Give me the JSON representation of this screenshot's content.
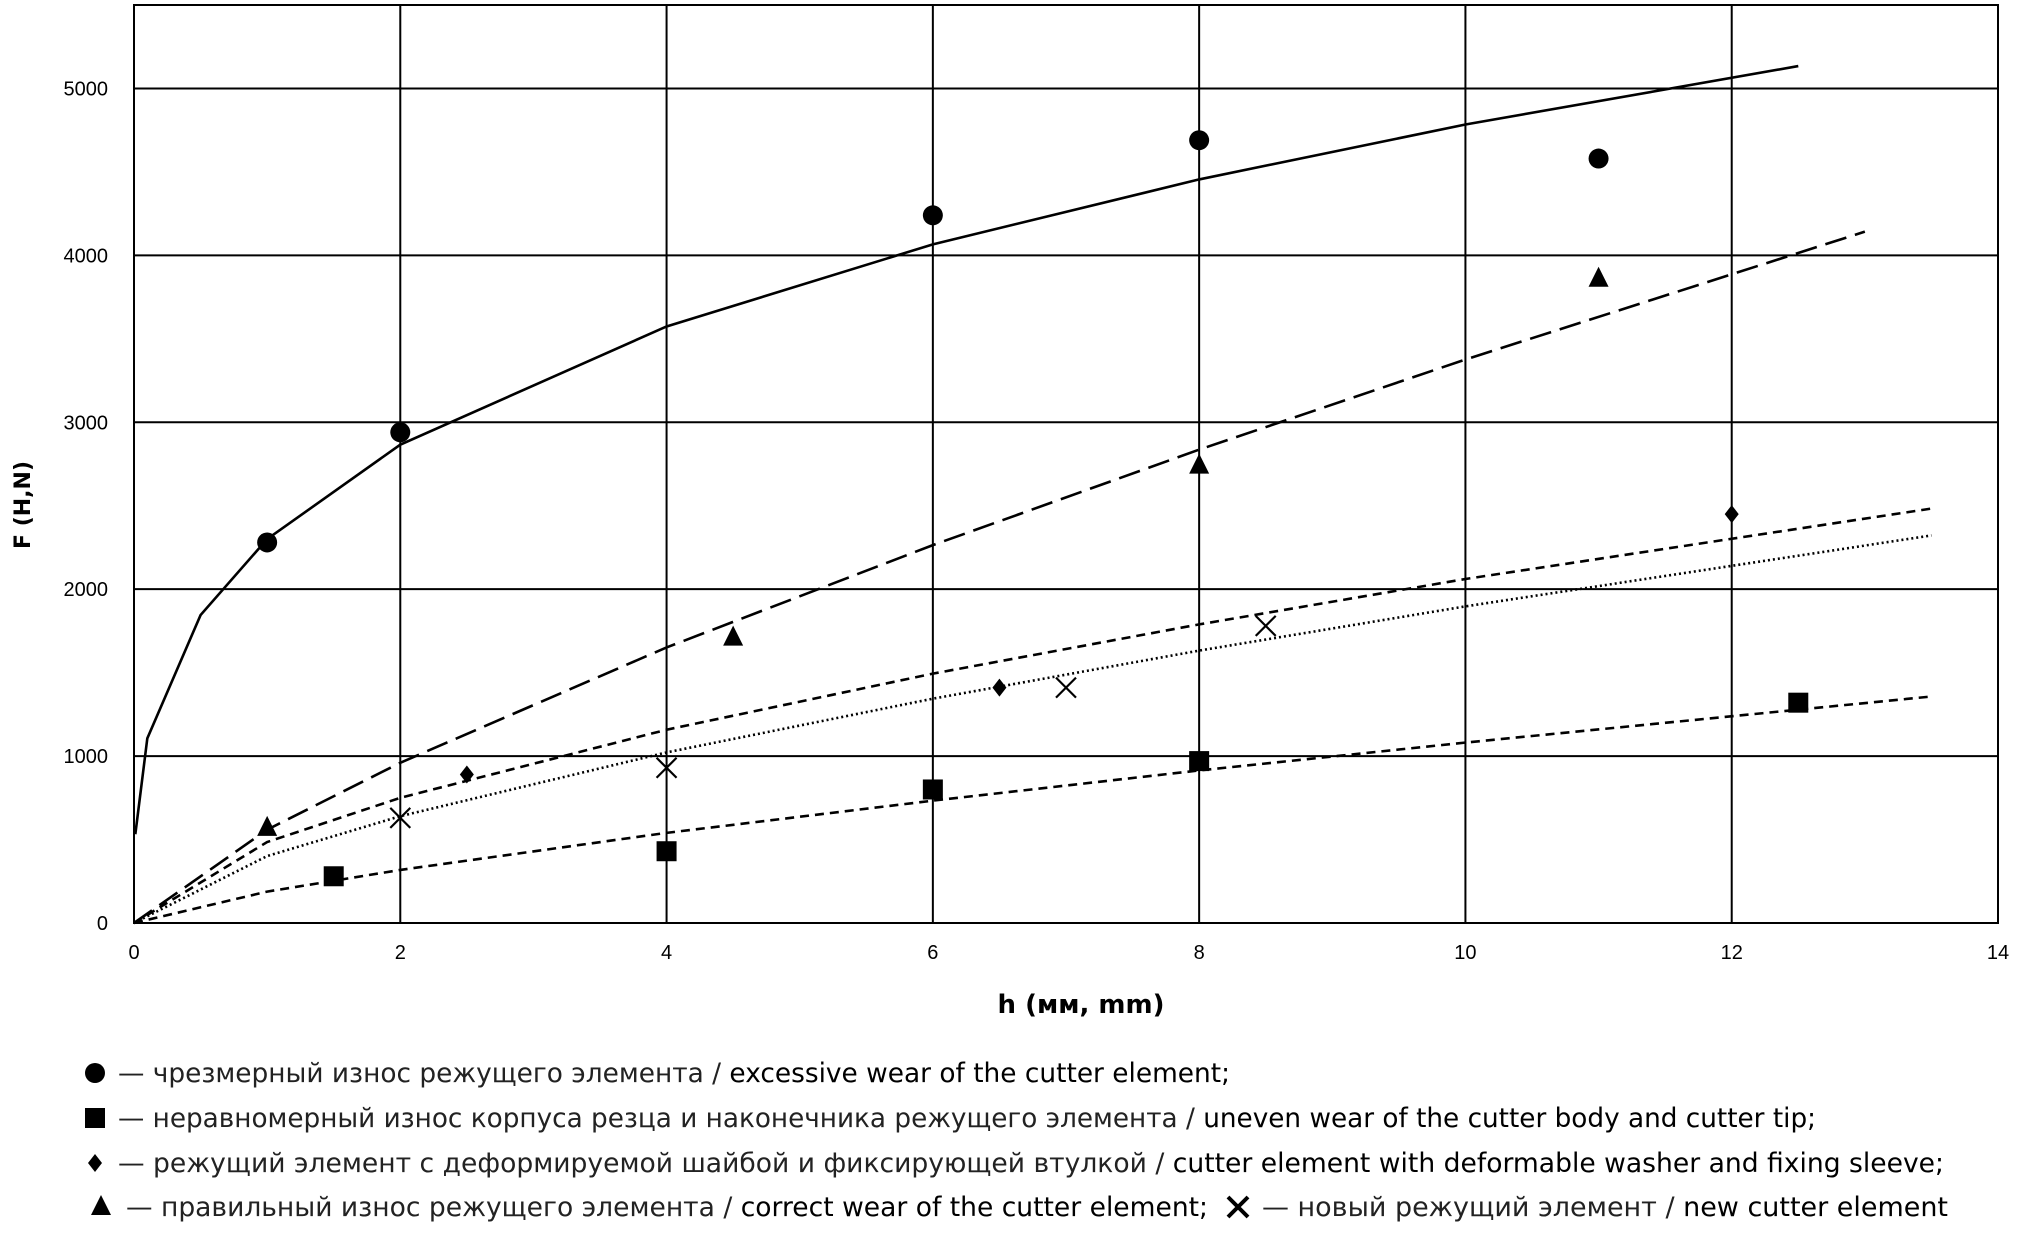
{
  "chart_data": {
    "type": "scatter",
    "xlabel": "h (мм, mm)",
    "ylabel": "F (H,N)",
    "xlim": [
      0,
      14
    ],
    "xticks": [
      0,
      2,
      4,
      6,
      8,
      10,
      12,
      14
    ],
    "ylim": [
      0,
      5500
    ],
    "yticks": [
      0,
      1000,
      2000,
      3000,
      4000,
      5000
    ],
    "grid": true,
    "series": [
      {
        "name_ru": "— чрезмерный износ режущего элемента / ",
        "name": "excessive wear of the cutter element;",
        "color": "#000000",
        "marker": "circle",
        "x": [
          1,
          2,
          6,
          8,
          11
        ],
        "values": [
          2280,
          2940,
          4240,
          4690,
          4580
        ],
        "trend": {
          "style": "solid",
          "x": [
            0.01,
            0.1,
            0.5,
            1,
            2,
            4,
            6,
            8,
            10,
            12.5
          ],
          "values": [
            532,
            1106,
            1845,
            2300,
            2866,
            3574,
            4066,
            4455,
            4784,
            5134
          ]
        }
      },
      {
        "name_ru": "— неравномерный износ корпуса резца и наконечника режущего элемента / ",
        "name": "uneven wear of the cutter body and cutter tip;",
        "color": "#000000",
        "marker": "square",
        "x": [
          1.5,
          4,
          6,
          8,
          12.5
        ],
        "values": [
          280,
          430,
          800,
          970,
          1320
        ],
        "trend": {
          "style": "short-dash",
          "x": [
            0,
            1,
            2,
            4,
            6,
            8,
            10,
            13.5
          ],
          "values": [
            0,
            188,
            318,
            540,
            733,
            914,
            1081,
            1357
          ]
        }
      },
      {
        "name_ru": "— режущий элемент с деформируемой шайбой и фиксирующей втулкой / ",
        "name": "cutter element with deformable washer and fixing sleeve;",
        "color": "#000000",
        "marker": "diamond",
        "x": [
          2.5,
          6.5,
          12
        ],
        "values": [
          890,
          1410,
          2450
        ],
        "trend": {
          "style": "short-dash",
          "x": [
            0,
            1,
            2,
            4,
            6,
            8,
            10,
            13.5
          ],
          "values": [
            0,
            485,
            750,
            1158,
            1494,
            1789,
            2061,
            2483
          ]
        }
      },
      {
        "name_ru": "— правильный износ режущего элемента / ",
        "name": "correct wear of the cutter element;",
        "color": "#000000",
        "marker": "triangle",
        "x": [
          1,
          4.5,
          8,
          11
        ],
        "values": [
          570,
          1710,
          2740,
          3860
        ],
        "trend": {
          "style": "long-dash",
          "x": [
            0,
            1,
            2,
            4,
            6,
            8,
            10,
            13
          ],
          "values": [
            0,
            559,
            960,
            1651,
            2264,
            2836,
            3376,
            4142
          ]
        }
      },
      {
        "name_ru": "— новый режущий элемент / ",
        "name": "new cutter element",
        "color": "#000000",
        "marker": "cross",
        "x": [
          2,
          4,
          7,
          8.5
        ],
        "values": [
          630,
          930,
          1410,
          1780
        ],
        "trend": {
          "style": "dotted",
          "x": [
            0,
            1,
            2,
            4,
            6,
            8,
            10,
            13.5
          ],
          "values": [
            0,
            401,
            640,
            1022,
            1344,
            1632,
            1897,
            2322
          ]
        }
      }
    ]
  }
}
